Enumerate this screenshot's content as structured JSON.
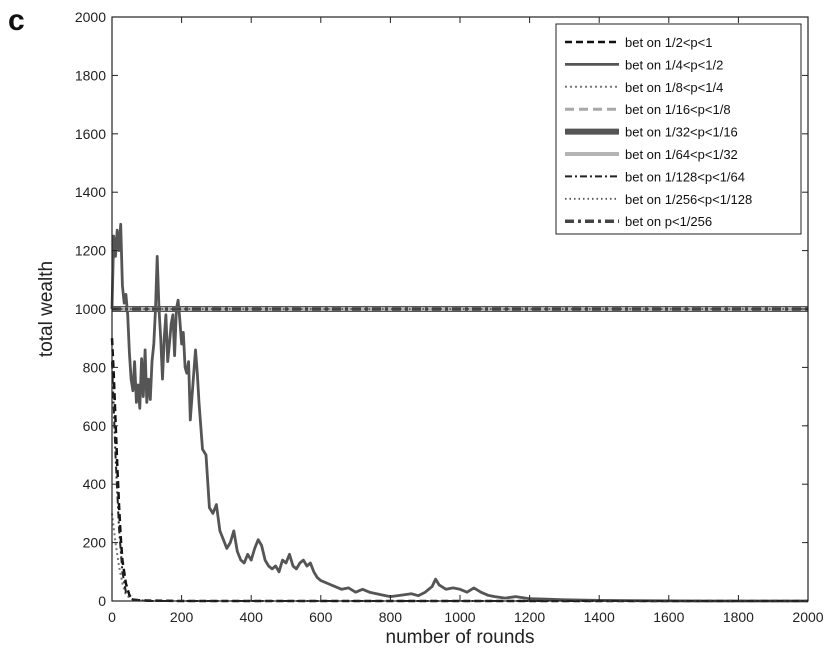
{
  "panel_label": "c",
  "chart_data": {
    "type": "line",
    "title": "",
    "xlabel": "number of rounds",
    "ylabel": "total wealth",
    "xlim": [
      0,
      2000
    ],
    "ylim": [
      0,
      2000
    ],
    "xticks": [
      0,
      200,
      400,
      600,
      800,
      1000,
      1200,
      1400,
      1600,
      1800,
      2000
    ],
    "yticks": [
      0,
      200,
      400,
      600,
      800,
      1000,
      1200,
      1400,
      1600,
      1800,
      2000
    ],
    "grid": false,
    "legend_position": "top-right",
    "series": [
      {
        "name": "bet on 1/2<p<1",
        "color": "#111111",
        "dash": "7,4",
        "width": 2.5,
        "points": [
          [
            0,
            900
          ],
          [
            5,
            780
          ],
          [
            10,
            620
          ],
          [
            15,
            470
          ],
          [
            20,
            330
          ],
          [
            25,
            220
          ],
          [
            30,
            140
          ],
          [
            40,
            60
          ],
          [
            50,
            20
          ],
          [
            60,
            5
          ],
          [
            80,
            2
          ],
          [
            200,
            0
          ],
          [
            2000,
            0
          ]
        ]
      },
      {
        "name": "bet on 1/4<p<1/2",
        "color": "#555555",
        "dash": "",
        "width": 2.8,
        "points": [
          [
            0,
            1000
          ],
          [
            5,
            1250
          ],
          [
            10,
            1180
          ],
          [
            15,
            1270
          ],
          [
            20,
            1200
          ],
          [
            25,
            1290
          ],
          [
            30,
            1080
          ],
          [
            35,
            1020
          ],
          [
            40,
            1050
          ],
          [
            45,
            980
          ],
          [
            50,
            850
          ],
          [
            55,
            760
          ],
          [
            60,
            720
          ],
          [
            65,
            820
          ],
          [
            70,
            680
          ],
          [
            75,
            740
          ],
          [
            80,
            660
          ],
          [
            85,
            830
          ],
          [
            90,
            700
          ],
          [
            95,
            860
          ],
          [
            100,
            680
          ],
          [
            105,
            760
          ],
          [
            110,
            690
          ],
          [
            115,
            820
          ],
          [
            120,
            880
          ],
          [
            125,
            1000
          ],
          [
            130,
            1180
          ],
          [
            135,
            1000
          ],
          [
            140,
            900
          ],
          [
            145,
            760
          ],
          [
            150,
            900
          ],
          [
            155,
            980
          ],
          [
            160,
            820
          ],
          [
            165,
            880
          ],
          [
            170,
            950
          ],
          [
            175,
            980
          ],
          [
            180,
            840
          ],
          [
            185,
            1000
          ],
          [
            190,
            1030
          ],
          [
            195,
            960
          ],
          [
            200,
            880
          ],
          [
            205,
            920
          ],
          [
            210,
            800
          ],
          [
            215,
            780
          ],
          [
            220,
            820
          ],
          [
            225,
            620
          ],
          [
            230,
            700
          ],
          [
            240,
            860
          ],
          [
            245,
            780
          ],
          [
            250,
            680
          ],
          [
            260,
            520
          ],
          [
            270,
            500
          ],
          [
            280,
            320
          ],
          [
            290,
            300
          ],
          [
            300,
            330
          ],
          [
            310,
            240
          ],
          [
            320,
            210
          ],
          [
            330,
            180
          ],
          [
            340,
            200
          ],
          [
            350,
            240
          ],
          [
            360,
            170
          ],
          [
            370,
            140
          ],
          [
            380,
            130
          ],
          [
            390,
            160
          ],
          [
            400,
            140
          ],
          [
            410,
            180
          ],
          [
            420,
            210
          ],
          [
            430,
            190
          ],
          [
            440,
            140
          ],
          [
            450,
            120
          ],
          [
            460,
            110
          ],
          [
            470,
            120
          ],
          [
            480,
            100
          ],
          [
            490,
            140
          ],
          [
            500,
            130
          ],
          [
            510,
            160
          ],
          [
            520,
            120
          ],
          [
            530,
            110
          ],
          [
            540,
            130
          ],
          [
            550,
            140
          ],
          [
            560,
            120
          ],
          [
            570,
            130
          ],
          [
            580,
            100
          ],
          [
            590,
            80
          ],
          [
            600,
            70
          ],
          [
            620,
            60
          ],
          [
            640,
            50
          ],
          [
            660,
            40
          ],
          [
            680,
            45
          ],
          [
            700,
            30
          ],
          [
            720,
            40
          ],
          [
            740,
            30
          ],
          [
            760,
            25
          ],
          [
            780,
            20
          ],
          [
            800,
            15
          ],
          [
            830,
            20
          ],
          [
            860,
            25
          ],
          [
            880,
            18
          ],
          [
            900,
            30
          ],
          [
            920,
            50
          ],
          [
            930,
            75
          ],
          [
            940,
            55
          ],
          [
            960,
            40
          ],
          [
            980,
            45
          ],
          [
            1000,
            40
          ],
          [
            1020,
            30
          ],
          [
            1040,
            45
          ],
          [
            1060,
            30
          ],
          [
            1080,
            20
          ],
          [
            1100,
            15
          ],
          [
            1130,
            10
          ],
          [
            1160,
            15
          ],
          [
            1200,
            8
          ],
          [
            1250,
            6
          ],
          [
            1300,
            4
          ],
          [
            1400,
            2
          ],
          [
            1500,
            1
          ],
          [
            1700,
            0
          ],
          [
            2000,
            0
          ]
        ]
      },
      {
        "name": "bet on 1/8<p<1/4",
        "color": "#777777",
        "dash": "2,3",
        "width": 2,
        "points": [
          [
            0,
            300
          ],
          [
            10,
            200
          ],
          [
            20,
            120
          ],
          [
            30,
            60
          ],
          [
            40,
            20
          ],
          [
            60,
            5
          ],
          [
            100,
            0
          ],
          [
            2000,
            0
          ]
        ]
      },
      {
        "name": "bet on 1/16<p<1/8",
        "color": "#a8a8a8",
        "dash": "9,5",
        "width": 3,
        "points": [
          [
            0,
            1000
          ],
          [
            2000,
            1000
          ]
        ]
      },
      {
        "name": "bet on 1/32<p<1/16",
        "color": "#555555",
        "dash": "",
        "width": 6,
        "points": [
          [
            0,
            1000
          ],
          [
            2000,
            1000
          ]
        ]
      },
      {
        "name": "bet on 1/64<p<1/32",
        "color": "#b4b4b4",
        "dash": "",
        "width": 4,
        "points": [
          [
            0,
            1000
          ],
          [
            2000,
            1000
          ]
        ]
      },
      {
        "name": "bet on 1/128<p<1/64",
        "color": "#222222",
        "dash": "7,3,2,3",
        "width": 2,
        "points": [
          [
            0,
            820
          ],
          [
            10,
            500
          ],
          [
            20,
            250
          ],
          [
            30,
            100
          ],
          [
            40,
            30
          ],
          [
            60,
            5
          ],
          [
            100,
            0
          ],
          [
            2000,
            0
          ]
        ]
      },
      {
        "name": "bet on 1/256<p<1/128",
        "color": "#555555",
        "dash": "1.5,3",
        "width": 1.8,
        "points": [
          [
            0,
            1000
          ],
          [
            2000,
            1000
          ]
        ]
      },
      {
        "name": "bet on p<1/256",
        "color": "#444444",
        "dash": "9,4,3,4",
        "width": 3.5,
        "points": [
          [
            0,
            1000
          ],
          [
            2000,
            1000
          ]
        ]
      }
    ]
  }
}
